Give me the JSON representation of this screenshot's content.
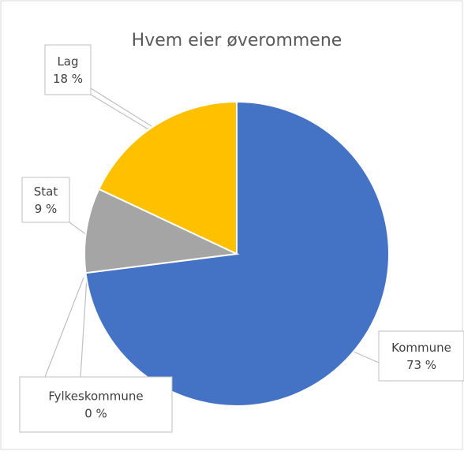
{
  "chart_data": {
    "type": "pie",
    "title": "Hvem eier øverommene",
    "categories": [
      "Kommune",
      "Fylkeskommune",
      "Stat",
      "Lag"
    ],
    "values": [
      73,
      0,
      9,
      18
    ],
    "value_labels": [
      "73 %",
      "0 %",
      "9 %",
      "18 %"
    ],
    "colors": [
      "#4472c4",
      "#ed7d31",
      "#a5a5a5",
      "#ffc000"
    ]
  }
}
